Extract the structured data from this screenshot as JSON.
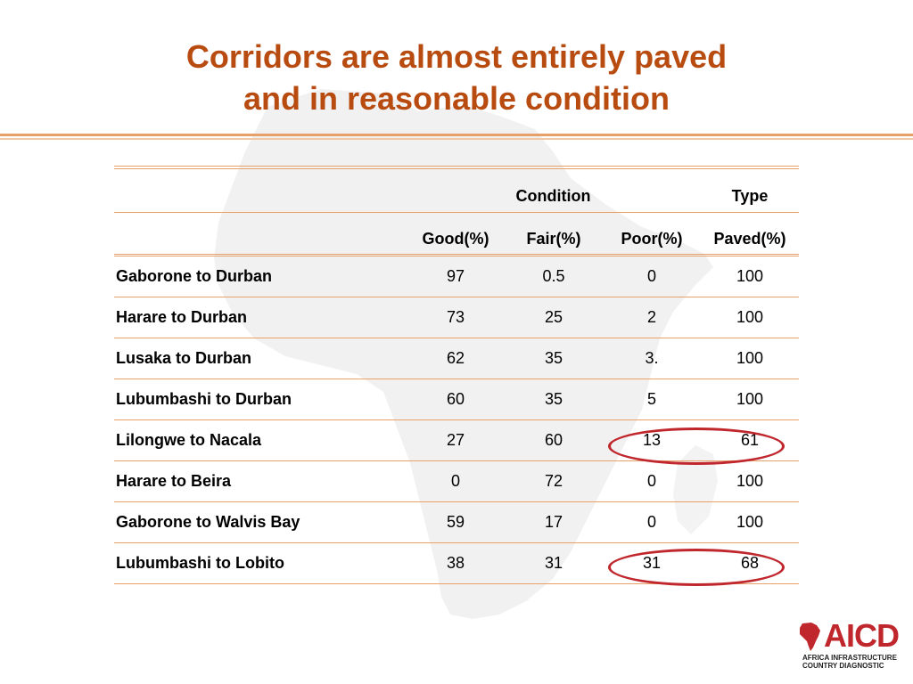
{
  "title": {
    "line1": "Corridors are almost entirely paved",
    "line2": "and in reasonable condition"
  },
  "table": {
    "group_headers": {
      "condition": "Condition",
      "type": "Type"
    },
    "columns": {
      "good": "Good(%)",
      "fair": "Fair(%)",
      "poor": "Poor(%)",
      "paved": "Paved(%)"
    },
    "rows": [
      {
        "name": "Gaborone to Durban",
        "good": "97",
        "fair": "0.5",
        "poor": "0",
        "paved": "100"
      },
      {
        "name": "Harare to Durban",
        "good": "73",
        "fair": "25",
        "poor": "2",
        "paved": "100"
      },
      {
        "name": "Lusaka to Durban",
        "good": "62",
        "fair": "35",
        "poor": "3.",
        "paved": "100"
      },
      {
        "name": "Lubumbashi to Durban",
        "good": "60",
        "fair": "35",
        "poor": "5",
        "paved": "100"
      },
      {
        "name": "Lilongwe to Nacala",
        "good": "27",
        "fair": "60",
        "poor": "13",
        "paved": "61"
      },
      {
        "name": "Harare to Beira",
        "good": "0",
        "fair": "72",
        "poor": "0",
        "paved": "100"
      },
      {
        "name": "Gaborone to Walvis Bay",
        "good": "59",
        "fair": "17",
        "poor": "0",
        "paved": "100"
      },
      {
        "name": "Lubumbashi to Lobito",
        "good": "38",
        "fair": "31",
        "poor": "31",
        "paved": "68"
      }
    ],
    "highlighted_rows": [
      "Lilongwe to Nacala",
      "Lubumbashi to Lobito"
    ]
  },
  "logo": {
    "text": "AICD",
    "sub_line1": "AFRICA INFRASTRUCTURE",
    "sub_line2": "COUNTRY DIAGNOSTIC",
    "icon": "africa-map-icon"
  },
  "colors": {
    "title": "#b84b10",
    "rule": "#e8a06a",
    "highlight_oval": "#c0272d",
    "logo": "#c0272d",
    "map_background": "#f1f1f1"
  }
}
